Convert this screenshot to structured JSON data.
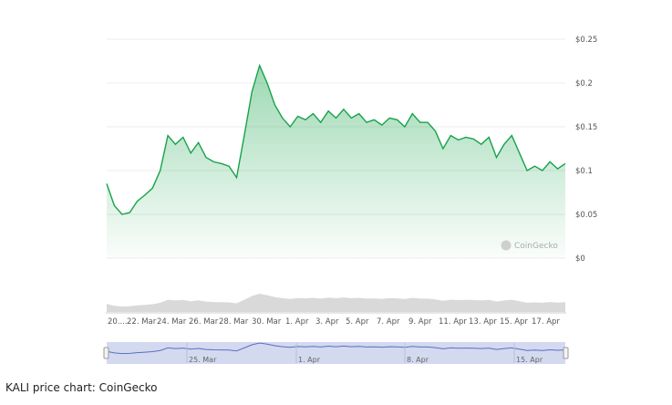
{
  "caption": "KALI price chart: CoinGecko",
  "watermark": "CoinGecko",
  "colors": {
    "line": "#16a34a",
    "fill_top": "#16a34a",
    "volume": "#d9d9d9",
    "navigator_bg": "#d3d9ef",
    "navigator_line": "#5b6fc0"
  },
  "chart_data": {
    "type": "area",
    "title": "",
    "xlabel": "",
    "ylabel": "",
    "ylim": [
      0,
      0.25
    ],
    "y_ticks": [
      "$0",
      "$0.05",
      "$0.1",
      "$0.15",
      "$0.2",
      "$0.25"
    ],
    "y_tick_values": [
      0,
      0.05,
      0.1,
      0.15,
      0.2,
      0.25
    ],
    "x_ticks": [
      "20....",
      "22. Mar",
      "24. Mar",
      "26. Mar",
      "28. Mar",
      "30. Mar",
      "1. Apr",
      "3. Apr",
      "5. Apr",
      "7. Apr",
      "9. Apr",
      "11. Apr",
      "13. Apr",
      "15. Apr",
      "17. Apr"
    ],
    "navigator_ticks": [
      "25. Mar",
      "1. Apr",
      "8. Apr",
      "15. Apr"
    ],
    "grid": true,
    "series": [
      {
        "x": [
          "20 Mar",
          "20.5 Mar",
          "21 Mar",
          "21.5 Mar",
          "22 Mar",
          "22.5 Mar",
          "23 Mar",
          "23.5 Mar",
          "24 Mar",
          "24.5 Mar",
          "25 Mar",
          "25.5 Mar",
          "26 Mar",
          "26.5 Mar",
          "27 Mar",
          "27.5 Mar",
          "28 Mar",
          "28.5 Mar",
          "29 Mar",
          "29.5 Mar",
          "30 Mar",
          "30.5 Mar",
          "31 Mar",
          "31.5 Mar",
          "1 Apr",
          "1.5 Apr",
          "2 Apr",
          "2.5 Apr",
          "3 Apr",
          "3.5 Apr",
          "4 Apr",
          "4.5 Apr",
          "5 Apr",
          "5.5 Apr",
          "6 Apr",
          "6.5 Apr",
          "7 Apr",
          "7.5 Apr",
          "8 Apr",
          "8.5 Apr",
          "9 Apr",
          "9.5 Apr",
          "10 Apr",
          "10.5 Apr",
          "11 Apr",
          "11.5 Apr",
          "12 Apr",
          "12.5 Apr",
          "13 Apr",
          "13.5 Apr",
          "14 Apr",
          "14.5 Apr",
          "15 Apr",
          "15.5 Apr",
          "16 Apr",
          "16.5 Apr",
          "17 Apr",
          "17.5 Apr",
          "18 Apr",
          "18.5 Apr",
          "19 Apr"
        ],
        "values": [
          0.085,
          0.06,
          0.05,
          0.052,
          0.065,
          0.072,
          0.08,
          0.1,
          0.14,
          0.13,
          0.138,
          0.12,
          0.132,
          0.115,
          0.11,
          0.108,
          0.105,
          0.092,
          0.14,
          0.19,
          0.22,
          0.2,
          0.175,
          0.16,
          0.15,
          0.162,
          0.158,
          0.165,
          0.155,
          0.168,
          0.16,
          0.17,
          0.16,
          0.165,
          0.155,
          0.158,
          0.152,
          0.16,
          0.158,
          0.15,
          0.165,
          0.155,
          0.155,
          0.145,
          0.125,
          0.14,
          0.135,
          0.138,
          0.136,
          0.13,
          0.138,
          0.115,
          0.13,
          0.14,
          0.12,
          0.1,
          0.105,
          0.1,
          0.11,
          0.102,
          0.108
        ]
      }
    ]
  }
}
